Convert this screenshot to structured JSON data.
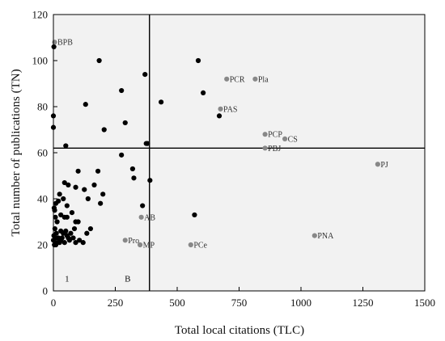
{
  "chart_data": {
    "type": "scatter",
    "xlabel": "Total local citations (TLC)",
    "ylabel": "Total number of publications (TN)",
    "xlim": [
      0,
      1500
    ],
    "ylim": [
      0,
      120
    ],
    "xticks": [
      0,
      250,
      500,
      750,
      1000,
      1250,
      1500
    ],
    "yticks": [
      0,
      20,
      40,
      60,
      80,
      100,
      120
    ],
    "grid": false,
    "plot_background": "#f2f2f2",
    "reference_lines": {
      "vertical_x": 388,
      "horizontal_y": 62
    },
    "quadrant_labels": [
      {
        "text": "1",
        "x": 55,
        "y": 4
      },
      {
        "text": "B",
        "x": 300,
        "y": 4
      }
    ],
    "series": [
      {
        "color": "#000000",
        "points": [
          [
            2,
            106
          ],
          [
            0,
            76
          ],
          [
            0,
            71
          ],
          [
            50,
            63
          ],
          [
            130,
            81
          ],
          [
            185,
            100
          ],
          [
            205,
            70
          ],
          [
            275,
            87
          ],
          [
            290,
            73
          ],
          [
            370,
            94
          ],
          [
            275,
            59
          ],
          [
            375,
            64
          ],
          [
            380,
            64
          ],
          [
            320,
            53
          ],
          [
            325,
            49
          ],
          [
            390,
            48
          ],
          [
            360,
            37
          ],
          [
            570,
            33
          ],
          [
            585,
            100
          ],
          [
            605,
            86
          ],
          [
            435,
            82
          ],
          [
            670,
            76
          ],
          [
            100,
            52
          ],
          [
            180,
            52
          ],
          [
            165,
            46
          ],
          [
            125,
            44
          ],
          [
            140,
            40
          ],
          [
            200,
            42
          ],
          [
            190,
            38
          ],
          [
            45,
            47
          ],
          [
            60,
            46
          ],
          [
            90,
            45
          ],
          [
            25,
            42
          ],
          [
            40,
            40
          ],
          [
            10,
            38
          ],
          [
            20,
            39
          ],
          [
            55,
            37
          ],
          [
            3,
            36
          ],
          [
            5,
            35
          ],
          [
            75,
            34
          ],
          [
            30,
            33
          ],
          [
            8,
            32
          ],
          [
            45,
            32
          ],
          [
            55,
            32
          ],
          [
            15,
            30
          ],
          [
            90,
            30
          ],
          [
            100,
            30
          ],
          [
            6,
            27
          ],
          [
            30,
            26
          ],
          [
            50,
            26
          ],
          [
            150,
            27
          ],
          [
            85,
            27
          ],
          [
            12,
            25
          ],
          [
            40,
            25
          ],
          [
            70,
            25
          ],
          [
            2,
            24
          ],
          [
            8,
            23
          ],
          [
            20,
            23
          ],
          [
            35,
            23
          ],
          [
            60,
            23
          ],
          [
            80,
            23
          ],
          [
            105,
            22
          ],
          [
            0,
            22
          ],
          [
            15,
            21
          ],
          [
            25,
            21
          ],
          [
            45,
            21
          ],
          [
            65,
            22
          ],
          [
            90,
            21
          ],
          [
            120,
            21
          ],
          [
            135,
            25
          ],
          [
            4,
            20
          ],
          [
            10,
            20
          ],
          [
            30,
            22
          ],
          [
            55,
            24
          ]
        ]
      },
      {
        "color": "#888888",
        "points": [
          {
            "label": "BPB",
            "x": 5,
            "y": 108
          },
          {
            "label": "PCR",
            "x": 700,
            "y": 92
          },
          {
            "label": "Pla",
            "x": 815,
            "y": 92
          },
          {
            "label": "PAS",
            "x": 675,
            "y": 79
          },
          {
            "label": "PCP",
            "x": 855,
            "y": 68
          },
          {
            "label": "CS",
            "x": 935,
            "y": 66
          },
          {
            "label": "PBJ",
            "x": 855,
            "y": 62
          },
          {
            "label": "PJ",
            "x": 1310,
            "y": 55
          },
          {
            "label": "AB",
            "x": 355,
            "y": 32
          },
          {
            "label": "PNA",
            "x": 1055,
            "y": 24
          },
          {
            "label": "Pro",
            "x": 290,
            "y": 22
          },
          {
            "label": "MP",
            "x": 350,
            "y": 20
          },
          {
            "label": "PCe",
            "x": 555,
            "y": 20
          }
        ]
      }
    ]
  }
}
